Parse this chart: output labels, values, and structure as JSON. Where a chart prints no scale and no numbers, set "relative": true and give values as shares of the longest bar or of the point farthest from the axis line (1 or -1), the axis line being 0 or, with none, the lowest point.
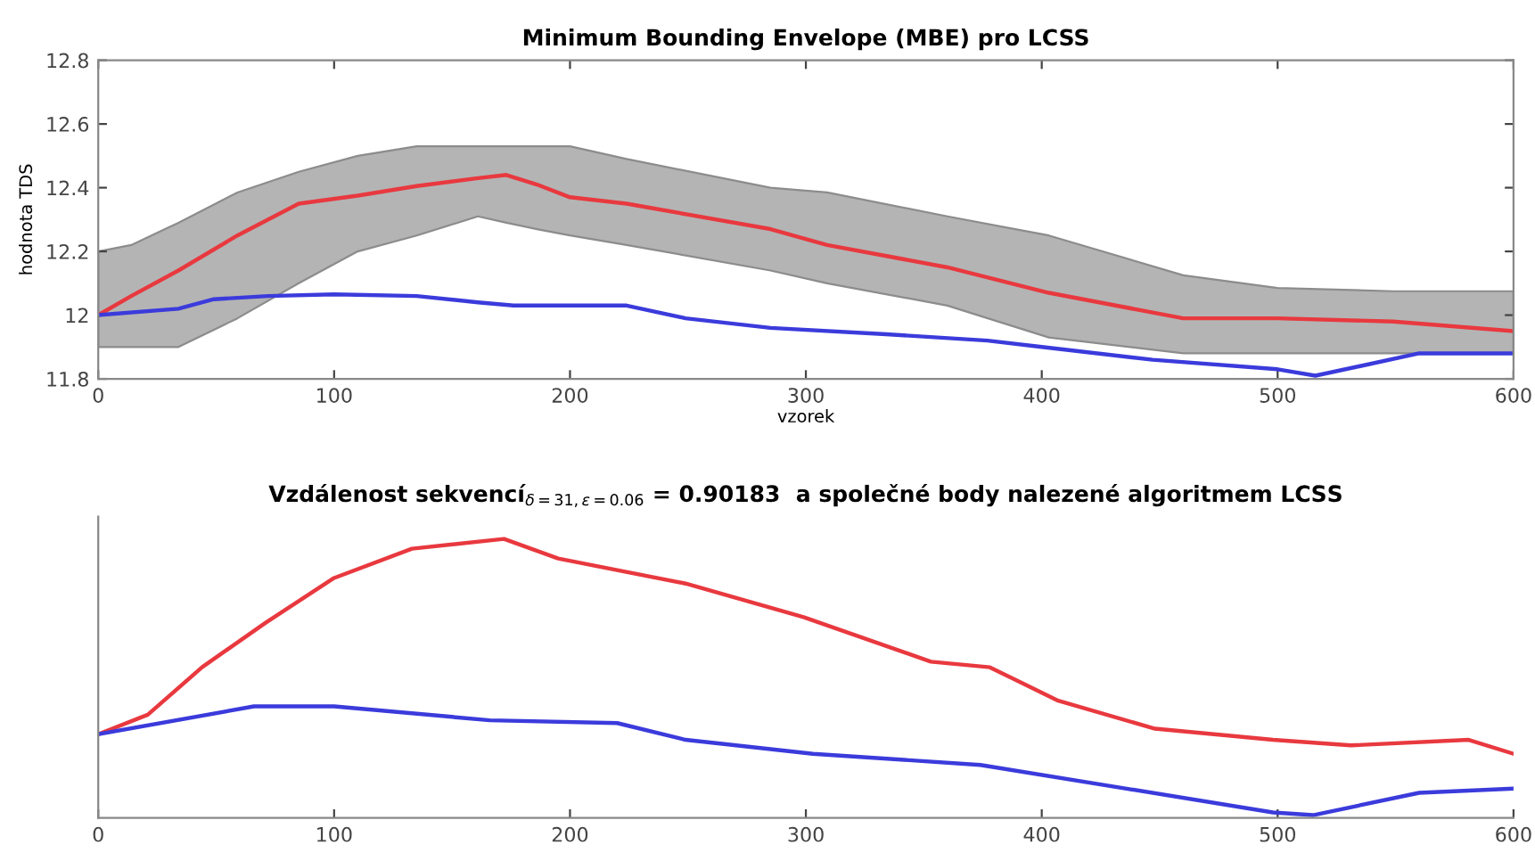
{
  "chart_data": [
    {
      "type": "line",
      "title": "Minimum Bounding Envelope (MBE) pro LCSS",
      "xlabel": "vzorek",
      "ylabel": "hodnota TDS",
      "xlim": [
        0,
        600
      ],
      "xticks": [
        0,
        100,
        200,
        300,
        400,
        500,
        600
      ],
      "ylim": [
        11.8,
        12.8
      ],
      "yticks": [
        11.8,
        12,
        12.2,
        12.4,
        12.6,
        12.8
      ],
      "series": [
        {
          "color": "#e8393f",
          "x": [
            0,
            14,
            34,
            59,
            85,
            110,
            135,
            161,
            173,
            186,
            200,
            224,
            285,
            309,
            360,
            403,
            460,
            500,
            549,
            600
          ],
          "values": [
            12.0,
            12.06,
            12.14,
            12.25,
            12.35,
            12.375,
            12.405,
            12.43,
            12.44,
            12.41,
            12.37,
            12.35,
            12.27,
            12.22,
            12.15,
            12.07,
            11.99,
            11.99,
            11.98,
            11.95
          ],
          "upper": [
            12.2,
            12.22,
            12.29,
            12.385,
            12.45,
            12.5,
            12.53,
            12.53,
            12.53,
            12.53,
            12.53,
            12.49,
            12.4,
            12.385,
            12.31,
            12.25,
            12.125,
            12.085,
            12.075,
            12.075
          ],
          "lower": [
            11.9,
            11.9,
            11.9,
            11.99,
            12.1,
            12.2,
            12.25,
            12.31,
            12.29,
            12.27,
            12.25,
            12.22,
            12.14,
            12.1,
            12.03,
            11.93,
            11.88,
            11.88,
            11.88,
            11.88
          ]
        },
        {
          "color": "#3b3bdc",
          "x": [
            0,
            34,
            49,
            72,
            100,
            135,
            161,
            176,
            200,
            224,
            249,
            285,
            334,
            377,
            400,
            447,
            500,
            516,
            535,
            560,
            600
          ],
          "values": [
            12.0,
            12.02,
            12.05,
            12.06,
            12.065,
            12.06,
            12.04,
            12.03,
            12.03,
            12.03,
            11.99,
            11.96,
            11.94,
            11.92,
            11.9,
            11.86,
            11.83,
            11.81,
            11.84,
            11.88,
            11.88
          ]
        }
      ]
    },
    {
      "type": "line",
      "title": "Vzdálenost sekvencí$_{δ=31,ε=0.06}$ = 0.90183  a společné body nalezené algoritmem LCSS",
      "relative": true,
      "xlim": [
        0,
        600
      ],
      "xticks": [
        0,
        100,
        200,
        300,
        400,
        500,
        600
      ],
      "tick_labels": "x",
      "series": [
        {
          "color": "#e8393f",
          "x": [
            0,
            21,
            44,
            71,
            100,
            133,
            172,
            195,
            249,
            299,
            353,
            378,
            407,
            448,
            498,
            531,
            581,
            600
          ],
          "values": [
            0.3,
            0.37,
            0.54,
            0.7,
            0.86,
            0.965,
            1,
            0.93,
            0.84,
            0.72,
            0.56,
            0.54,
            0.42,
            0.32,
            0.28,
            0.26,
            0.28,
            0.23
          ]
        },
        {
          "color": "#3b3bdc",
          "x": [
            0,
            66,
            100,
            166,
            220,
            249,
            303,
            374,
            436,
            498,
            515,
            560,
            600
          ],
          "values": [
            0.3,
            0.4,
            0.4,
            0.35,
            0.34,
            0.28,
            0.23,
            0.19,
            0.105,
            0.02,
            0.01,
            0.09,
            0.105
          ]
        }
      ]
    }
  ]
}
